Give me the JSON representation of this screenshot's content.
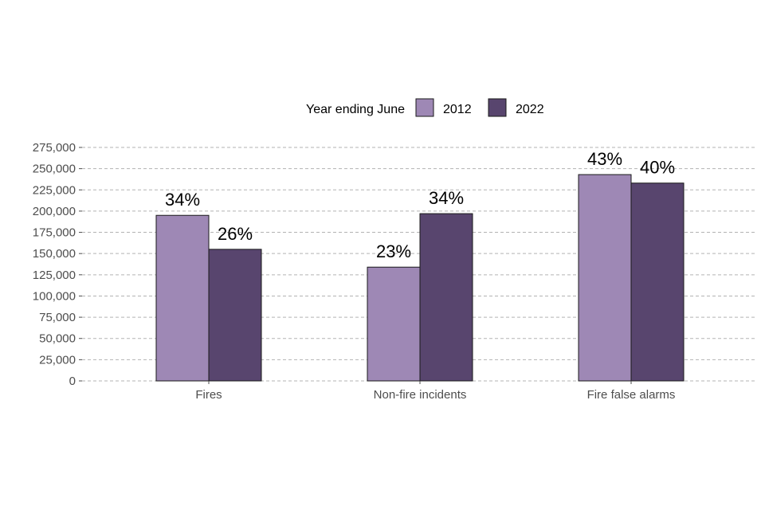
{
  "chart_data": {
    "type": "bar",
    "title": "",
    "xlabel": "",
    "ylabel": "",
    "categories": [
      "Fires",
      "Non-fire incidents",
      "Fire false alarms"
    ],
    "series": [
      {
        "name": "2012",
        "color": "#9e88b5",
        "values": [
          195000,
          134000,
          243000
        ],
        "labels": [
          "34%",
          "23%",
          "43%"
        ]
      },
      {
        "name": "2022",
        "color": "#58456e",
        "values": [
          155000,
          197000,
          233000
        ],
        "labels": [
          "26%",
          "34%",
          "40%"
        ]
      }
    ],
    "ylim": [
      0,
      275000
    ],
    "yticks": [
      0,
      25000,
      50000,
      75000,
      100000,
      125000,
      150000,
      175000,
      200000,
      225000,
      250000,
      275000
    ],
    "ytick_labels": [
      "0",
      "25,000",
      "50,000",
      "75,000",
      "100,000",
      "125,000",
      "150,000",
      "175,000",
      "200,000",
      "225,000",
      "250,000",
      "275,000"
    ],
    "grid": true,
    "legend": {
      "title": "Year ending June",
      "position": "top-center"
    }
  }
}
